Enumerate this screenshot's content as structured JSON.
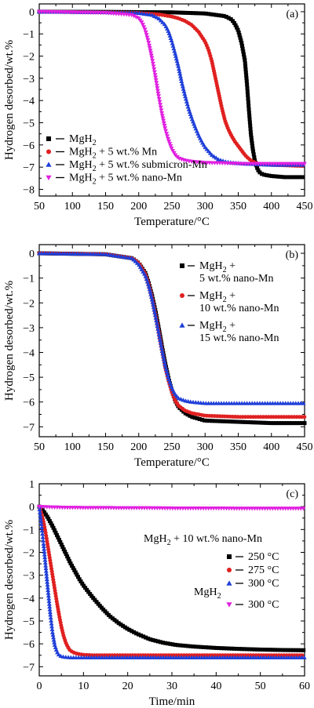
{
  "chart_data": [
    {
      "type": "scatter",
      "panel_label": "(a)",
      "xlabel": "Temperature/°C",
      "ylabel": "Hydrogen desorbed/wt.%",
      "xlim": [
        50,
        450
      ],
      "ylim": [
        -8.3,
        0.35
      ],
      "xticks": [
        50,
        100,
        150,
        200,
        250,
        300,
        350,
        400,
        450
      ],
      "yticks": [
        0,
        -1,
        -2,
        -3,
        -4,
        -5,
        -6,
        -7,
        -8
      ],
      "legend_position": "bottom-left",
      "series": [
        {
          "name": "MgH₂",
          "color": "#000000",
          "marker": "square",
          "x": [
            50,
            150,
            250,
            300,
            330,
            340,
            345,
            350,
            355,
            360,
            363,
            366,
            369,
            372,
            375,
            378,
            381,
            385,
            390,
            400,
            420,
            450
          ],
          "y": [
            0,
            -0.01,
            -0.03,
            -0.08,
            -0.2,
            -0.35,
            -0.55,
            -0.85,
            -1.4,
            -2.2,
            -3.2,
            -4.4,
            -5.5,
            -6.2,
            -6.7,
            -7.0,
            -7.2,
            -7.3,
            -7.35,
            -7.4,
            -7.45,
            -7.45
          ]
        },
        {
          "name": "MgH₂ + 5 wt.% Mn",
          "color": "#e02020",
          "marker": "circle",
          "x": [
            50,
            150,
            200,
            230,
            250,
            260,
            270,
            280,
            290,
            300,
            305,
            310,
            315,
            320,
            325,
            330,
            335,
            340,
            345,
            350,
            355,
            360,
            365,
            370,
            380,
            400,
            450
          ],
          "y": [
            0,
            -0.03,
            -0.06,
            -0.12,
            -0.22,
            -0.3,
            -0.42,
            -0.6,
            -0.9,
            -1.35,
            -1.7,
            -2.2,
            -2.9,
            -3.6,
            -4.3,
            -4.9,
            -5.3,
            -5.6,
            -5.85,
            -6.05,
            -6.25,
            -6.45,
            -6.6,
            -6.72,
            -6.85,
            -6.9,
            -6.95
          ]
        },
        {
          "name": "MgH₂ + 5 wt.% submicron-Mn",
          "color": "#1f3fd8",
          "marker": "triangle-up",
          "x": [
            50,
            150,
            200,
            220,
            230,
            240,
            245,
            250,
            255,
            260,
            265,
            270,
            275,
            280,
            285,
            290,
            295,
            300,
            310,
            320,
            330,
            340,
            360,
            400,
            450
          ],
          "y": [
            0,
            -0.03,
            -0.06,
            -0.15,
            -0.3,
            -0.6,
            -0.9,
            -1.35,
            -1.9,
            -2.5,
            -3.2,
            -3.8,
            -4.35,
            -4.8,
            -5.2,
            -5.55,
            -5.85,
            -6.1,
            -6.45,
            -6.65,
            -6.75,
            -6.8,
            -6.85,
            -6.9,
            -6.9
          ]
        },
        {
          "name": "MgH₂ + 5 wt.% nano-Mn",
          "color": "#e020e0",
          "marker": "triangle-down",
          "x": [
            50,
            150,
            190,
            200,
            205,
            210,
            215,
            220,
            225,
            230,
            235,
            240,
            245,
            250,
            255,
            260,
            270,
            280,
            300,
            330,
            360,
            400,
            450
          ],
          "y": [
            0,
            -0.05,
            -0.15,
            -0.3,
            -0.5,
            -0.85,
            -1.4,
            -2.1,
            -2.9,
            -3.8,
            -4.6,
            -5.3,
            -5.8,
            -6.2,
            -6.45,
            -6.6,
            -6.7,
            -6.75,
            -6.8,
            -6.82,
            -6.85,
            -6.85,
            -6.85
          ]
        }
      ]
    },
    {
      "type": "scatter",
      "panel_label": "(b)",
      "xlabel": "Temperature/°C",
      "ylabel": "Hydrogen desorbed/wt.%",
      "xlim": [
        50,
        450
      ],
      "ylim": [
        -7.4,
        0.35
      ],
      "xticks": [
        50,
        100,
        150,
        200,
        250,
        300,
        350,
        400,
        450
      ],
      "yticks": [
        0,
        -1,
        -2,
        -3,
        -4,
        -5,
        -6,
        -7
      ],
      "legend_position": "top-right",
      "series": [
        {
          "name_lines": [
            "MgH₂ +",
            "5 wt.% nano-Mn"
          ],
          "color": "#000000",
          "marker": "square",
          "x": [
            50,
            150,
            190,
            200,
            210,
            215,
            220,
            225,
            230,
            235,
            240,
            245,
            250,
            255,
            260,
            270,
            280,
            300,
            350,
            400,
            450
          ],
          "y": [
            0,
            -0.04,
            -0.2,
            -0.4,
            -0.8,
            -1.2,
            -1.7,
            -2.3,
            -3.0,
            -3.75,
            -4.45,
            -5.05,
            -5.55,
            -5.95,
            -6.2,
            -6.45,
            -6.6,
            -6.75,
            -6.8,
            -6.85,
            -6.85
          ]
        },
        {
          "name_lines": [
            "MgH₂ +",
            "10 wt.% nano-Mn"
          ],
          "color": "#e02020",
          "marker": "circle",
          "x": [
            50,
            150,
            190,
            200,
            210,
            215,
            220,
            225,
            230,
            235,
            240,
            245,
            250,
            255,
            260,
            270,
            280,
            300,
            350,
            400,
            450
          ],
          "y": [
            0,
            -0.04,
            -0.2,
            -0.4,
            -0.85,
            -1.25,
            -1.8,
            -2.45,
            -3.15,
            -3.9,
            -4.6,
            -5.15,
            -5.6,
            -5.95,
            -6.15,
            -6.35,
            -6.45,
            -6.55,
            -6.6,
            -6.6,
            -6.6
          ]
        },
        {
          "name_lines": [
            "MgH₂ +",
            "15 wt.% nano-Mn"
          ],
          "color": "#1f3fd8",
          "marker": "triangle-up",
          "x": [
            50,
            150,
            190,
            200,
            210,
            215,
            220,
            225,
            230,
            235,
            240,
            245,
            250,
            255,
            260,
            270,
            280,
            300,
            350,
            400,
            450
          ],
          "y": [
            0,
            -0.04,
            -0.2,
            -0.45,
            -0.9,
            -1.3,
            -1.85,
            -2.5,
            -3.2,
            -3.9,
            -4.55,
            -5.05,
            -5.45,
            -5.7,
            -5.85,
            -5.95,
            -6.0,
            -6.05,
            -6.05,
            -6.05,
            -6.05
          ]
        }
      ]
    },
    {
      "type": "scatter",
      "panel_label": "(c)",
      "xlabel": "Time/min",
      "ylabel": "Hydrogen desorbed/wt.%",
      "xlim": [
        0,
        60
      ],
      "ylim": [
        -7.4,
        1.0
      ],
      "xticks": [
        0,
        10,
        20,
        30,
        40,
        50,
        60
      ],
      "yticks": [
        1,
        0,
        -1,
        -2,
        -3,
        -4,
        -5,
        -6,
        -7
      ],
      "legend_title": "MgH₂ + 10 wt.% nano-Mn",
      "legend_subtitle": "MgH₂",
      "legend_position": "right",
      "series": [
        {
          "name": "250 °C",
          "color": "#000000",
          "marker": "square",
          "x": [
            0,
            1,
            2,
            3,
            4,
            5,
            6,
            7,
            8,
            9,
            10,
            12,
            14,
            16,
            18,
            20,
            22,
            25,
            28,
            31,
            35,
            40,
            45,
            50,
            55,
            60
          ],
          "y": [
            0,
            -0.2,
            -0.5,
            -0.85,
            -1.25,
            -1.65,
            -2.05,
            -2.45,
            -2.8,
            -3.15,
            -3.45,
            -3.95,
            -4.4,
            -4.8,
            -5.1,
            -5.35,
            -5.55,
            -5.8,
            -5.95,
            -6.05,
            -6.12,
            -6.18,
            -6.22,
            -6.25,
            -6.27,
            -6.28
          ]
        },
        {
          "name": "275 °C",
          "color": "#e02020",
          "marker": "circle",
          "x": [
            0,
            0.5,
            1,
            1.5,
            2,
            2.5,
            3,
            3.5,
            4,
            4.5,
            5,
            5.5,
            6,
            6.5,
            7,
            8,
            9,
            10,
            12,
            15,
            20,
            30,
            40,
            50,
            60
          ],
          "y": [
            0,
            -0.3,
            -0.7,
            -1.2,
            -1.8,
            -2.4,
            -3.0,
            -3.6,
            -4.2,
            -4.75,
            -5.25,
            -5.65,
            -5.95,
            -6.15,
            -6.3,
            -6.4,
            -6.45,
            -6.48,
            -6.5,
            -6.5,
            -6.5,
            -6.5,
            -6.5,
            -6.5,
            -6.5
          ]
        },
        {
          "name": "300 °C",
          "color": "#1f3fd8",
          "marker": "triangle-up",
          "x": [
            0,
            0.5,
            1,
            1.5,
            2,
            2.5,
            3,
            3.5,
            4,
            4.5,
            5,
            6,
            7,
            8,
            10,
            15,
            20,
            30,
            40,
            50,
            60
          ],
          "y": [
            0,
            -0.8,
            -1.7,
            -2.7,
            -3.7,
            -4.7,
            -5.5,
            -6.05,
            -6.35,
            -6.5,
            -6.55,
            -6.58,
            -6.6,
            -6.6,
            -6.6,
            -6.6,
            -6.6,
            -6.6,
            -6.6,
            -6.6,
            -6.6
          ]
        },
        {
          "name": "300 °C",
          "group": "MgH₂",
          "color": "#e020e0",
          "marker": "triangle-down",
          "x": [
            0,
            2,
            4,
            6,
            8,
            10,
            12,
            14,
            16,
            18,
            20,
            25,
            30,
            35,
            40,
            45,
            50,
            55,
            60
          ],
          "y": [
            0,
            -0.02,
            -0.03,
            -0.04,
            -0.04,
            -0.05,
            -0.05,
            -0.05,
            -0.05,
            -0.06,
            -0.06,
            -0.06,
            -0.07,
            -0.07,
            -0.07,
            -0.08,
            -0.08,
            -0.08,
            -0.08
          ]
        }
      ]
    }
  ]
}
